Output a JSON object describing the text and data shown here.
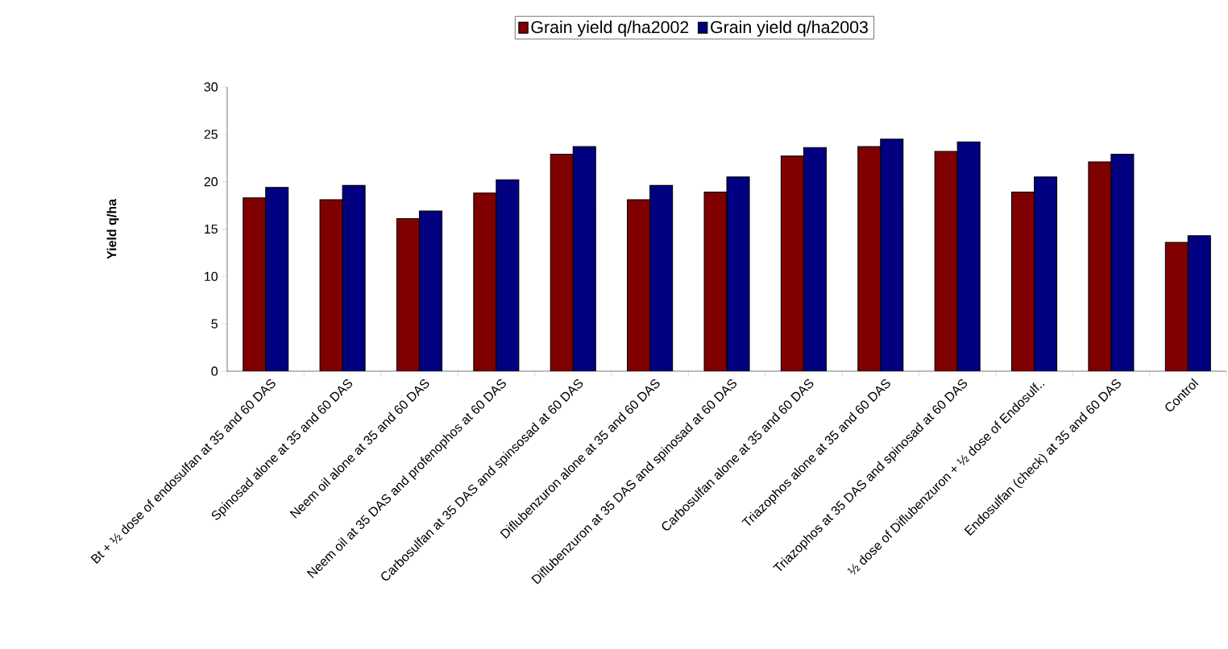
{
  "chart_data": {
    "type": "bar",
    "ylabel": "Yield q/ha",
    "categories": [
      "Bt + ½ dose of endosulfan at 35 and 60 DAS",
      "Spinosad alone at 35 and 60 DAS",
      "Neem oil alone at 35 and 60 DAS",
      "Neem oil at 35 DAS and profenophos at 60 DAS",
      "Carbosulfan at 35 DAS and spinsosad at 60 DAS",
      "Diflubenzuron alone at 35 and 60 DAS",
      "Diflubenzuron at 35 DAS and spinosad at 60 DAS",
      "Carbosulfan alone at 35 and 60 DAS",
      "Triazophos alone at 35 and 60 DAS",
      "Triazophos at 35 DAS and spinosad at 60 DAS",
      "½ dose of Diflubenzuron + ½ dose of Endosulf..",
      "Endosulfan (check) at 35 and 60 DAS",
      "Control"
    ],
    "series": [
      {
        "name": "Grain yield q/ha2002",
        "color": "#800000",
        "values": [
          18.3,
          18.1,
          16.1,
          18.8,
          22.9,
          18.1,
          18.9,
          22.7,
          23.7,
          23.2,
          18.9,
          22.1,
          13.6
        ]
      },
      {
        "name": "Grain yield q/ha2003",
        "color": "#000080",
        "values": [
          19.4,
          19.6,
          16.9,
          20.2,
          23.7,
          19.6,
          20.5,
          23.6,
          24.5,
          24.2,
          20.5,
          22.9,
          14.3
        ]
      }
    ],
    "ylim": [
      0,
      30
    ],
    "yticks": [
      0,
      5,
      10,
      15,
      20,
      25,
      30
    ],
    "grid": false,
    "legend": "top"
  }
}
